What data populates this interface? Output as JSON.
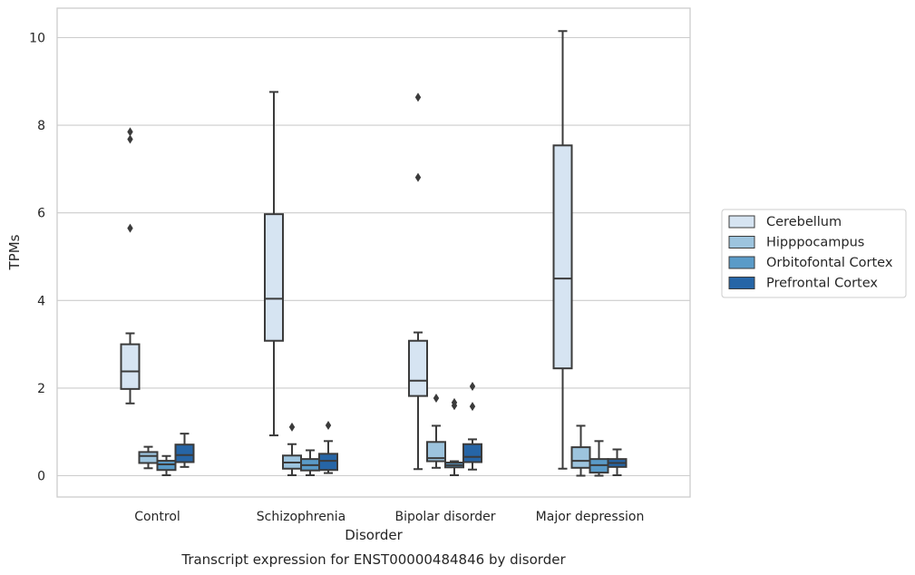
{
  "chart_data": {
    "type": "box",
    "title": "Transcript expression for ENST00000484846 by disorder",
    "xlabel": "Disorder",
    "ylabel": "TPMs",
    "ylim": [
      -0.5,
      10.65
    ],
    "yticks": [
      0,
      2,
      4,
      6,
      8,
      10
    ],
    "grid": "horizontal",
    "legend_position": "right",
    "categories": [
      "Control",
      "Schizophrenia",
      "Bipolar disorder",
      "Major depression"
    ],
    "series": [
      {
        "name": "Cerebellum",
        "color": "#d6e4f2",
        "boxes": [
          {
            "whislo": 1.65,
            "q1": 1.98,
            "med": 2.38,
            "q3": 3.0,
            "whishi": 3.25,
            "fliers": [
              5.65,
              7.68,
              7.85
            ]
          },
          {
            "whislo": 0.92,
            "q1": 3.08,
            "med": 4.04,
            "q3": 5.97,
            "whishi": 8.76,
            "fliers": []
          },
          {
            "whislo": 0.15,
            "q1": 1.82,
            "med": 2.17,
            "q3": 3.08,
            "whishi": 3.27,
            "fliers": [
              6.81,
              8.64
            ]
          },
          {
            "whislo": 0.16,
            "q1": 2.45,
            "med": 4.5,
            "q3": 7.54,
            "whishi": 10.15,
            "fliers": []
          }
        ]
      },
      {
        "name": "Hipppocampus",
        "color": "#9dc4de",
        "boxes": [
          {
            "whislo": 0.17,
            "q1": 0.29,
            "med": 0.45,
            "q3": 0.54,
            "whishi": 0.66,
            "fliers": []
          },
          {
            "whislo": 0.01,
            "q1": 0.16,
            "med": 0.3,
            "q3": 0.46,
            "whishi": 0.72,
            "fliers": [
              1.11
            ]
          },
          {
            "whislo": 0.18,
            "q1": 0.33,
            "med": 0.4,
            "q3": 0.77,
            "whishi": 1.14,
            "fliers": [
              1.77
            ]
          },
          {
            "whislo": 0.0,
            "q1": 0.18,
            "med": 0.34,
            "q3": 0.65,
            "whishi": 1.14,
            "fliers": []
          }
        ]
      },
      {
        "name": "Orbitofontal Cortex",
        "color": "#5a9bc8",
        "boxes": [
          {
            "whislo": 0.01,
            "q1": 0.13,
            "med": 0.26,
            "q3": 0.34,
            "whishi": 0.45,
            "fliers": []
          },
          {
            "whislo": 0.01,
            "q1": 0.12,
            "med": 0.24,
            "q3": 0.38,
            "whishi": 0.58,
            "fliers": []
          },
          {
            "whislo": 0.01,
            "q1": 0.19,
            "med": 0.24,
            "q3": 0.3,
            "whishi": 0.33,
            "fliers": [
              1.6,
              1.67
            ]
          },
          {
            "whislo": 0.0,
            "q1": 0.07,
            "med": 0.24,
            "q3": 0.38,
            "whishi": 0.79,
            "fliers": []
          }
        ]
      },
      {
        "name": "Prefrontal Cortex",
        "color": "#2665a6",
        "boxes": [
          {
            "whislo": 0.2,
            "q1": 0.31,
            "med": 0.47,
            "q3": 0.71,
            "whishi": 0.96,
            "fliers": []
          },
          {
            "whislo": 0.06,
            "q1": 0.13,
            "med": 0.34,
            "q3": 0.5,
            "whishi": 0.79,
            "fliers": [
              1.15
            ]
          },
          {
            "whislo": 0.14,
            "q1": 0.31,
            "med": 0.43,
            "q3": 0.72,
            "whishi": 0.83,
            "fliers": [
              1.58,
              2.04
            ]
          },
          {
            "whislo": 0.01,
            "q1": 0.2,
            "med": 0.29,
            "q3": 0.38,
            "whishi": 0.6,
            "fliers": []
          }
        ]
      }
    ]
  },
  "colors": {
    "box_stroke": "#3b3b3b",
    "grid": "#cccccc",
    "frame": "#cccccc",
    "legend_border": "#cccccc"
  }
}
